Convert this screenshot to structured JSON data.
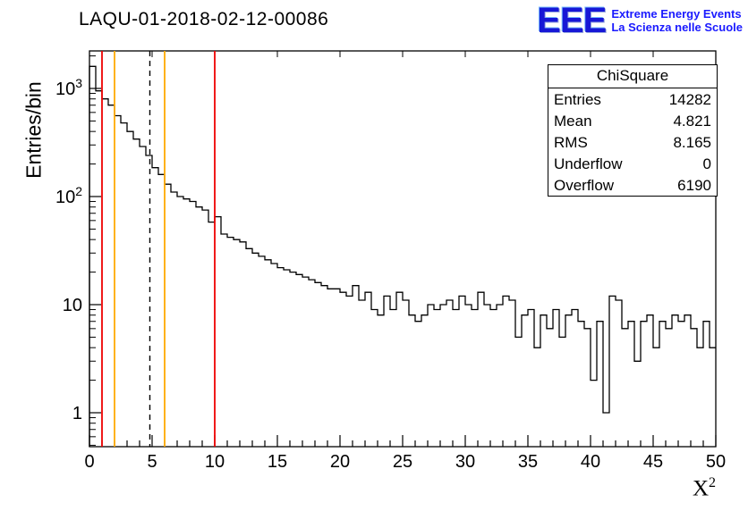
{
  "title": "LAQU-01-2018-02-12-00086",
  "logo": {
    "acronym": "EEE",
    "line1": "Extreme Energy Events",
    "line2": "La Scienza nelle Scuole",
    "color": "#1a1aff"
  },
  "stats": {
    "title": "ChiSquare",
    "rows": [
      {
        "label": "Entries",
        "value": "14282"
      },
      {
        "label": "Mean",
        "value": "4.821"
      },
      {
        "label": "RMS",
        "value": "8.165"
      },
      {
        "label": "Underflow",
        "value": "0"
      },
      {
        "label": "Overflow",
        "value": "6190"
      }
    ]
  },
  "chart_data": {
    "type": "bar",
    "subtype": "step-histogram",
    "title": "LAQU-01-2018-02-12-00086",
    "xlabel": "X^2",
    "ylabel": "Entries/bin",
    "xlim": [
      0,
      50
    ],
    "ylog": true,
    "ylim": [
      0.49,
      2200
    ],
    "bin_width": 0.5,
    "x_ticks": [
      0,
      5,
      10,
      15,
      20,
      25,
      30,
      35,
      40,
      45,
      50
    ],
    "y_ticks": [
      {
        "v": 1,
        "label": "1"
      },
      {
        "v": 10,
        "label": "10"
      },
      {
        "v": 100,
        "label": "10^2"
      },
      {
        "v": 1000,
        "label": "10^3"
      }
    ],
    "grid": false,
    "legend_position": "none (stats box top-right)",
    "line_color": "#000000",
    "bins": [
      1600,
      950,
      800,
      700,
      560,
      480,
      400,
      340,
      290,
      240,
      185,
      160,
      130,
      110,
      100,
      95,
      90,
      80,
      75,
      58,
      65,
      45,
      42,
      40,
      38,
      33,
      30,
      28,
      26,
      24,
      22,
      21,
      20,
      19,
      18,
      17,
      16,
      15,
      14,
      14,
      13,
      12,
      15,
      11,
      13,
      9,
      8,
      12,
      9,
      13,
      11,
      8,
      7,
      8,
      10,
      9,
      10,
      11,
      9,
      12,
      10,
      9,
      13,
      10,
      9,
      10,
      12,
      11,
      5,
      8,
      9,
      4,
      8,
      6,
      9,
      5,
      8,
      9,
      7,
      6,
      2,
      7,
      1,
      12,
      11,
      6,
      7,
      3,
      7,
      8,
      4,
      7,
      6,
      8,
      7,
      8,
      6,
      4,
      7,
      4
    ],
    "vlines": [
      {
        "x": 1,
        "color": "#ee0000",
        "style": "solid"
      },
      {
        "x": 2,
        "color": "#ffaa00",
        "style": "solid"
      },
      {
        "x": 4.821,
        "color": "#000000",
        "style": "dashed"
      },
      {
        "x": 6,
        "color": "#ffaa00",
        "style": "solid"
      },
      {
        "x": 10,
        "color": "#ee0000",
        "style": "solid"
      }
    ]
  }
}
